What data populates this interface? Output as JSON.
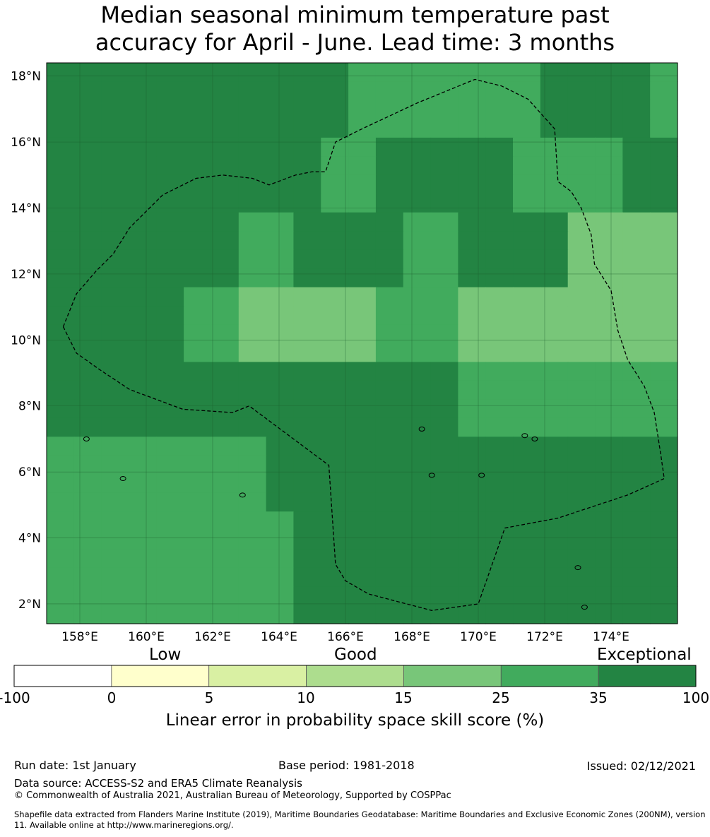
{
  "title": {
    "line1": "Median seasonal minimum temperature past",
    "line2": "accuracy for April - June. Lead time: 3 months"
  },
  "map": {
    "lon_range": [
      157.0,
      176.0
    ],
    "lat_range": [
      1.4,
      18.4
    ],
    "x_ticks": [
      "158°E",
      "160°E",
      "162°E",
      "164°E",
      "166°E",
      "168°E",
      "170°E",
      "172°E",
      "174°E"
    ],
    "y_ticks": [
      "18°N",
      "16°N",
      "14°N",
      "12°N",
      "10°N",
      "8°N",
      "6°N",
      "4°N",
      "2°N"
    ],
    "grid_columns": 23,
    "grid_rows": 30,
    "skill_grid": [
      "66666666666555555566665",
      "66666666666555555566665",
      "66666666666555555566665",
      "66666666666555555566665",
      "66666666665566666555566",
      "66666666665566666555566",
      "66666666665566666555566",
      "66666666665566666555566",
      "66666665566665566664444",
      "66666665566665566664444",
      "66666665566665566664444",
      "66666665566665566664444",
      "66666554444455544444444",
      "66666554444455544444444",
      "66666554444455544444444",
      "66666554444455544444444",
      "66666666666666655555555",
      "66666666666666655555555",
      "66666666666666655555555",
      "66666666666666655555555",
      "55555555666666666666666",
      "55555555666666666666666",
      "55555555666666666666666",
      "55555555666666666666666",
      "55555555566666666666666",
      "55555555566666666666666",
      "55555555566666666666666",
      "55555555566666666666666",
      "55555555566666666666666",
      "55555555566666666666666"
    ],
    "eez_boundary": [
      [
        157.5,
        10.4
      ],
      [
        157.9,
        11.4
      ],
      [
        158.5,
        12.1
      ],
      [
        159.0,
        12.6
      ],
      [
        159.5,
        13.4
      ],
      [
        160.5,
        14.4
      ],
      [
        161.5,
        14.9
      ],
      [
        162.3,
        15.0
      ],
      [
        163.2,
        14.9
      ],
      [
        163.7,
        14.7
      ],
      [
        164.5,
        15.0
      ],
      [
        165.0,
        15.1
      ],
      [
        165.4,
        15.1
      ],
      [
        165.7,
        16.0
      ],
      [
        166.5,
        16.4
      ],
      [
        168.2,
        17.2
      ],
      [
        169.9,
        17.9
      ],
      [
        170.7,
        17.7
      ],
      [
        171.5,
        17.3
      ],
      [
        172.3,
        16.4
      ],
      [
        172.4,
        14.8
      ],
      [
        172.8,
        14.5
      ],
      [
        173.1,
        14.0
      ],
      [
        173.4,
        13.2
      ],
      [
        173.5,
        12.3
      ],
      [
        174.0,
        11.5
      ],
      [
        174.2,
        10.3
      ],
      [
        174.5,
        9.4
      ],
      [
        175.0,
        8.6
      ],
      [
        175.3,
        7.8
      ],
      [
        175.5,
        6.5
      ],
      [
        175.6,
        5.8
      ],
      [
        174.5,
        5.3
      ],
      [
        172.4,
        4.6
      ],
      [
        170.8,
        4.3
      ],
      [
        170.0,
        2.0
      ],
      [
        168.6,
        1.8
      ],
      [
        166.7,
        2.3
      ],
      [
        166.0,
        2.7
      ],
      [
        165.7,
        3.2
      ],
      [
        165.5,
        6.2
      ],
      [
        163.1,
        8.0
      ],
      [
        162.6,
        7.8
      ],
      [
        161.1,
        7.9
      ],
      [
        159.5,
        8.5
      ],
      [
        158.6,
        9.1
      ],
      [
        157.9,
        9.6
      ],
      [
        157.5,
        10.4
      ]
    ]
  },
  "colorbar": {
    "category_labels": [
      "Low",
      "Good",
      "Exceptional"
    ],
    "bins": [
      -100,
      0,
      5,
      10,
      15,
      25,
      35,
      100
    ],
    "bin_labels": [
      "-100",
      "0",
      "5",
      "10",
      "15",
      "25",
      "35",
      "100"
    ],
    "colors": [
      "#ffffff",
      "#ffffcc",
      "#d9f0a3",
      "#addd8e",
      "#78c679",
      "#41ab5d",
      "#238443"
    ],
    "label": "Linear error in probability space skill score (%)"
  },
  "footer": {
    "run_date": "Run date: 1st January",
    "base_period": "Base period: 1981-2018",
    "issued": "Issued: 02/12/2021",
    "data_source": "Data source: ACCESS-S2 and ERA5 Climate Reanalysis",
    "copyright": "© Commonwealth of Australia 2021, Australian Bureau of Meteorology, Supported by COSPPac",
    "shapefile_note": "Shapefile data extracted from Flanders Marine Institute (2019), Maritime Boundaries Geodatabase: Maritime Boundaries and Exclusive Economic Zones (200NM), version 11. Available online at http://www.marineregions.org/."
  }
}
